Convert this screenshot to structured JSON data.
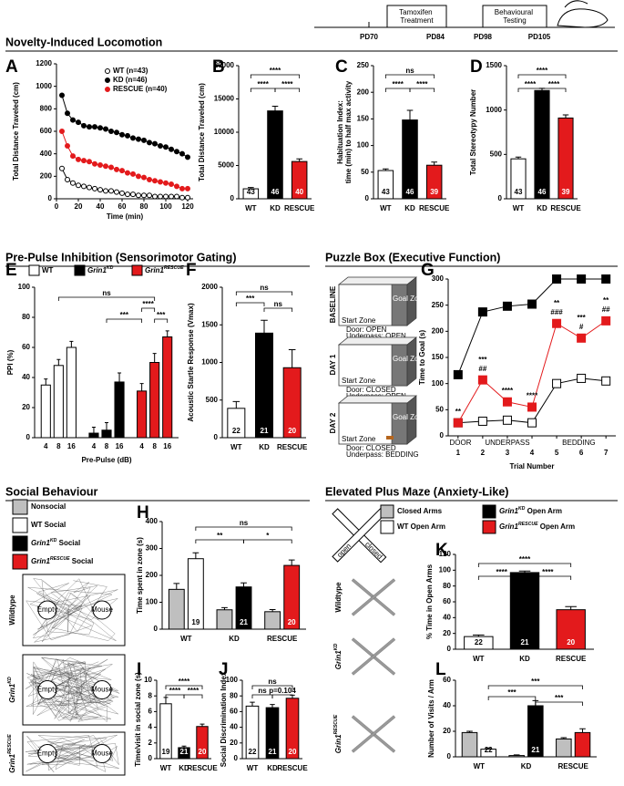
{
  "timeline": {
    "steps": [
      "Tamoxifen Treatment",
      "Behavioural Testing"
    ],
    "days": [
      "PD70",
      "PD84",
      "PD98",
      "PD105"
    ]
  },
  "sections": [
    "Novelty-Induced Locomotion",
    "Pre-Pulse Inhibition (Sensorimotor Gating)",
    "Puzzle Box (Executive Function)",
    "Social Behaviour",
    "Elevated Plus Maze (Anxiety-Like)"
  ],
  "panels": [
    "A",
    "B",
    "C",
    "D",
    "E",
    "F",
    "G",
    "H",
    "I",
    "J",
    "K",
    "L"
  ],
  "puzzle_box": {
    "days": [
      "BASELINE",
      "DAY 1",
      "DAY 2"
    ],
    "start": "Start Zone",
    "goal": "Goal Zone",
    "conditions": [
      [
        "Door: OPEN",
        "Underpass: OPEN"
      ],
      [
        "Door: CLOSED",
        "Underpass: OPEN"
      ],
      [
        "Door: CLOSED",
        "Underpass: BEDDING"
      ]
    ]
  },
  "social_tracks": {
    "genotypes": [
      "Wildtype",
      "Grin1KD",
      "Grin1RESCUE"
    ],
    "empty": "Empty",
    "mouse": "Mouse"
  },
  "plus_maze": {
    "genotypes": [
      "Wildtype",
      "Grin1KD",
      "Grin1RESCUE"
    ],
    "arms": [
      "open",
      "closed"
    ]
  },
  "chart_data": [
    {
      "type": "line",
      "ylabel": "Total Distance Traveled (cm)",
      "xlabel": "Time (min)",
      "x": [
        5,
        10,
        15,
        20,
        25,
        30,
        35,
        40,
        45,
        50,
        55,
        60,
        65,
        70,
        75,
        80,
        85,
        90,
        95,
        100,
        105,
        110,
        115,
        120
      ],
      "xlim": [
        0,
        125
      ],
      "xticks": [
        0,
        20,
        40,
        60,
        80,
        100,
        120
      ],
      "ylim": [
        0,
        1200
      ],
      "yticks": [
        0,
        200,
        400,
        600,
        800,
        1000,
        1200
      ],
      "series": [
        {
          "name": "WT (n=43)",
          "color": "#ffffff",
          "marker": "circle",
          "values": [
            270,
            170,
            140,
            120,
            110,
            100,
            90,
            80,
            70,
            70,
            60,
            50,
            40,
            40,
            30,
            30,
            30,
            20,
            20,
            20,
            20,
            20,
            10,
            10
          ]
        },
        {
          "name": "KD (n=46)",
          "color": "#000000",
          "marker": "circle",
          "values": [
            920,
            760,
            700,
            680,
            650,
            640,
            640,
            630,
            620,
            600,
            590,
            570,
            560,
            540,
            530,
            520,
            500,
            490,
            470,
            460,
            440,
            420,
            400,
            370
          ]
        },
        {
          "name": "RESCUE (n=40)",
          "color": "#e31a1c",
          "marker": "circle",
          "values": [
            600,
            470,
            380,
            350,
            340,
            330,
            310,
            300,
            290,
            280,
            260,
            250,
            230,
            220,
            200,
            190,
            170,
            160,
            150,
            140,
            130,
            110,
            90,
            90
          ]
        }
      ]
    },
    {
      "type": "bar",
      "ylabel": "Total Distance Traveled (cm)",
      "categories": [
        "WT",
        "KD",
        "RESCUE"
      ],
      "values": [
        1500,
        13200,
        5600
      ],
      "errors": [
        200,
        700,
        400
      ],
      "colors": [
        "#ffffff",
        "#000000",
        "#e31a1c"
      ],
      "n": [
        43,
        46,
        40
      ],
      "ylim": [
        0,
        20000
      ],
      "yticks": [
        0,
        5000,
        10000,
        15000,
        20000
      ],
      "significance": [
        "****",
        "****",
        "****"
      ]
    },
    {
      "type": "bar",
      "ylabel": [
        "Habituation Index:",
        "time (min) to half max activity"
      ],
      "categories": [
        "WT",
        "KD",
        "RESCUE"
      ],
      "values": [
        53,
        148,
        63
      ],
      "errors": [
        3,
        18,
        6
      ],
      "colors": [
        "#ffffff",
        "#000000",
        "#e31a1c"
      ],
      "n": [
        43,
        46,
        39
      ],
      "ylim": [
        0,
        250
      ],
      "yticks": [
        0,
        50,
        100,
        150,
        200,
        250
      ],
      "significance": [
        "ns",
        "****",
        "****"
      ]
    },
    {
      "type": "bar",
      "ylabel": "Total Stereotypy Number",
      "categories": [
        "WT",
        "KD",
        "RESCUE"
      ],
      "values": [
        450,
        1220,
        910
      ],
      "errors": [
        20,
        25,
        35
      ],
      "colors": [
        "#ffffff",
        "#000000",
        "#e31a1c"
      ],
      "n": [
        43,
        46,
        39
      ],
      "ylim": [
        0,
        1500
      ],
      "yticks": [
        0,
        500,
        1000,
        1500
      ],
      "significance": [
        "****",
        "****",
        "****"
      ]
    },
    {
      "type": "bar",
      "ylabel": "PPI (%)",
      "xlabel": "Pre-Pulse (dB)",
      "categories": [
        "4",
        "8",
        "16"
      ],
      "legend": true,
      "ylim": [
        0,
        100
      ],
      "yticks": [
        0,
        20,
        40,
        60,
        80,
        100
      ],
      "series": [
        {
          "name": "WT",
          "color": "#ffffff",
          "values": [
            35,
            48,
            60
          ],
          "errors": [
            4,
            4,
            4
          ]
        },
        {
          "name": "Grin1KD",
          "color": "#000000",
          "values": [
            3,
            5,
            37
          ],
          "errors": [
            4,
            5,
            6
          ]
        },
        {
          "name": "Grin1RESCUE",
          "color": "#e31a1c",
          "values": [
            31,
            50,
            67
          ],
          "errors": [
            5,
            6,
            4
          ]
        }
      ],
      "significance": [
        "ns",
        "***",
        "****",
        "***"
      ]
    },
    {
      "type": "bar",
      "ylabel": "Acoustic Startle Response (Vmax)",
      "categories": [
        "WT",
        "KD",
        "RESCUE"
      ],
      "values": [
        390,
        1390,
        930
      ],
      "errors": [
        90,
        170,
        240
      ],
      "colors": [
        "#ffffff",
        "#000000",
        "#e31a1c"
      ],
      "n": [
        22,
        21,
        20
      ],
      "ylim": [
        0,
        2000
      ],
      "yticks": [
        0,
        500,
        1000,
        1500,
        2000
      ],
      "significance": [
        "ns",
        "***",
        "ns"
      ]
    },
    {
      "type": "line",
      "ylabel": "Time to Goal (s)",
      "xlabel": "Trial Number",
      "x": [
        1,
        2,
        3,
        4,
        5,
        6,
        7
      ],
      "xlim": [
        0.6,
        7.4
      ],
      "xticks": [
        1,
        2,
        3,
        4,
        5,
        6,
        7
      ],
      "ylim": [
        0,
        300
      ],
      "yticks": [
        0,
        50,
        100,
        150,
        200,
        250,
        300
      ],
      "phases": [
        "DOOR",
        "UNDERPASS",
        "BEDDING"
      ],
      "series": [
        {
          "color": "#ffffff",
          "marker": "square",
          "values": [
            25,
            28,
            30,
            25,
            100,
            110,
            105
          ]
        },
        {
          "color": "#000000",
          "marker": "square",
          "values": [
            117,
            237,
            248,
            252,
            300,
            300,
            300
          ]
        },
        {
          "color": "#e31a1c",
          "marker": "square",
          "values": [
            25,
            107,
            65,
            55,
            215,
            187,
            220
          ]
        }
      ],
      "annotations": [
        [
          "**"
        ],
        [
          "***",
          "##"
        ],
        [
          "****"
        ],
        [
          "****"
        ],
        [
          "**",
          "###"
        ],
        [
          "***",
          "#"
        ],
        [
          "**",
          "##"
        ]
      ]
    },
    {
      "type": "bar",
      "ylabel": "Time spent in zone (s)",
      "categories": [
        "WT",
        "KD",
        "RESCUE"
      ],
      "ylim": [
        0,
        400
      ],
      "yticks": [
        0,
        100,
        200,
        300,
        400
      ],
      "series": [
        {
          "color": "#bfbfbf",
          "values": [
            148,
            72,
            65
          ],
          "errors": [
            22,
            8,
            8
          ]
        },
        {
          "colors": [
            "#ffffff",
            "#000000",
            "#e31a1c"
          ],
          "values": [
            262,
            157,
            237
          ],
          "errors": [
            22,
            15,
            20
          ]
        }
      ],
      "n": [
        19,
        21,
        20
      ],
      "legend": [
        {
          "label": "Nonsocial",
          "color": "#bfbfbf"
        },
        {
          "label": "WT Social",
          "color": "#ffffff"
        },
        {
          "label": "Grin1KD Social",
          "color": "#000000"
        },
        {
          "label": "Grin1RESCUE Social",
          "color": "#e31a1c"
        }
      ],
      "significance": [
        "ns",
        "**",
        "*"
      ]
    },
    {
      "type": "bar",
      "ylabel": "Time/visit in social zone (s)",
      "categories": [
        "WT",
        "KD",
        "RESCUE"
      ],
      "values": [
        7,
        1.4,
        4.1
      ],
      "errors": [
        0.8,
        0.2,
        0.3
      ],
      "colors": [
        "#ffffff",
        "#000000",
        "#e31a1c"
      ],
      "n": [
        19,
        21,
        20
      ],
      "ylim": [
        0,
        10
      ],
      "yticks": [
        0,
        2,
        4,
        6,
        8,
        10
      ],
      "significance": [
        "****",
        "****",
        "****"
      ]
    },
    {
      "type": "bar",
      "ylabel": "Social Discrimination Index",
      "categories": [
        "WT",
        "KD",
        "RESCUE"
      ],
      "values": [
        67,
        65,
        77
      ],
      "errors": [
        5,
        4,
        4
      ],
      "colors": [
        "#ffffff",
        "#000000",
        "#e31a1c"
      ],
      "n": [
        22,
        21,
        20
      ],
      "ylim": [
        0,
        100
      ],
      "yticks": [
        0,
        20,
        40,
        60,
        80,
        100
      ],
      "significance": [
        "ns",
        "ns",
        "p=0.104"
      ]
    },
    {
      "type": "bar",
      "ylabel": "% Time in Open Arms",
      "categories": [
        "WT",
        "KD",
        "RESCUE"
      ],
      "values": [
        16,
        97,
        50
      ],
      "errors": [
        2,
        2,
        4
      ],
      "colors": [
        "#ffffff",
        "#000000",
        "#e31a1c"
      ],
      "n": [
        22,
        21,
        20
      ],
      "ylim": [
        0,
        120
      ],
      "yticks": [
        0,
        20,
        40,
        60,
        80,
        100,
        120
      ],
      "significance": [
        "****",
        "****",
        "****"
      ],
      "legend": [
        {
          "label": "Closed Arms",
          "color": "#bfbfbf"
        },
        {
          "label": "Grin1KD Open Arm",
          "color": "#000000"
        },
        {
          "label": "WT Open Arm",
          "color": "#ffffff"
        },
        {
          "label": "Grin1RESCUE Open Arm",
          "color": "#e31a1c"
        }
      ]
    },
    {
      "type": "bar",
      "ylabel": "Number of Visits / Arm",
      "categories": [
        "WT",
        "KD",
        "RESCUE"
      ],
      "ylim": [
        0,
        60
      ],
      "yticks": [
        0,
        20,
        40,
        60
      ],
      "series": [
        {
          "color": "#bfbfbf",
          "values": [
            19,
            1,
            14
          ],
          "errors": [
            1,
            0.5,
            1
          ]
        },
        {
          "colors": [
            "#ffffff",
            "#000000",
            "#e31a1c"
          ],
          "values": [
            6,
            40,
            19
          ],
          "errors": [
            1,
            4,
            3
          ]
        }
      ],
      "n": [
        22,
        21,
        null
      ],
      "significance": [
        "***",
        "***",
        "***"
      ]
    }
  ]
}
